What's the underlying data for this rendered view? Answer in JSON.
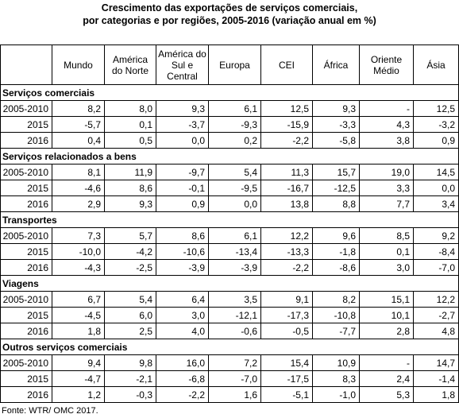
{
  "title": [
    "Crescimento das exportações de serviços comerciais,",
    "por categorias e por regiões, 2005-2016 (variação anual em %)"
  ],
  "table": {
    "columns": [
      "Mundo",
      "América do Norte",
      "América do Sul e Central",
      "Europa",
      "CEI",
      "África",
      "Oriente Médio",
      "Ásia"
    ],
    "sections": [
      {
        "name": "Serviços comerciais",
        "rows": [
          {
            "label": "2005-2010",
            "values": [
              "8,2",
              "8,0",
              "9,3",
              "6,1",
              "12,5",
              "9,3",
              "-",
              "12,5"
            ]
          },
          {
            "label": "2015",
            "values": [
              "-5,7",
              "0,1",
              "-3,7",
              "-9,3",
              "-15,9",
              "-3,3",
              "4,3",
              "-3,2"
            ]
          },
          {
            "label": "2016",
            "values": [
              "0,4",
              "0,5",
              "0,0",
              "0,2",
              "-2,2",
              "-5,8",
              "3,8",
              "0,9"
            ]
          }
        ]
      },
      {
        "name": "Serviços relacionados a bens",
        "rows": [
          {
            "label": "2005-2010",
            "values": [
              "8,1",
              "11,9",
              "-9,7",
              "5,4",
              "11,3",
              "15,7",
              "19,0",
              "14,5"
            ]
          },
          {
            "label": "2015",
            "values": [
              "-4,6",
              "8,6",
              "-0,1",
              "-9,5",
              "-16,7",
              "-12,5",
              "3,3",
              "0,0"
            ]
          },
          {
            "label": "2016",
            "values": [
              "2,9",
              "9,3",
              "0,9",
              "0,0",
              "13,8",
              "8,8",
              "7,7",
              "3,4"
            ]
          }
        ]
      },
      {
        "name": "Transportes",
        "rows": [
          {
            "label": "2005-2010",
            "values": [
              "7,3",
              "5,7",
              "8,6",
              "6,1",
              "12,2",
              "9,6",
              "8,5",
              "9,2"
            ]
          },
          {
            "label": "2015",
            "values": [
              "-10,0",
              "-4,2",
              "-10,6",
              "-13,4",
              "-13,3",
              "-1,8",
              "0,1",
              "-8,4"
            ]
          },
          {
            "label": "2016",
            "values": [
              "-4,3",
              "-2,5",
              "-3,9",
              "-3,9",
              "-2,2",
              "-8,6",
              "3,0",
              "-7,0"
            ]
          }
        ]
      },
      {
        "name": "Viagens",
        "rows": [
          {
            "label": "2005-2010",
            "values": [
              "6,7",
              "5,4",
              "6,4",
              "3,5",
              "9,1",
              "8,2",
              "15,1",
              "12,2"
            ]
          },
          {
            "label": "2015",
            "values": [
              "-4,5",
              "6,0",
              "3,0",
              "-12,1",
              "-17,3",
              "-10,8",
              "10,1",
              "-2,7"
            ]
          },
          {
            "label": "2016",
            "values": [
              "1,8",
              "2,5",
              "4,0",
              "-0,6",
              "-0,5",
              "-7,7",
              "2,8",
              "4,8"
            ]
          }
        ]
      },
      {
        "name": "Outros serviços comerciais",
        "rows": [
          {
            "label": "2005-2010",
            "values": [
              "9,4",
              "9,8",
              "16,0",
              "7,2",
              "15,4",
              "10,9",
              "-",
              "14,7"
            ]
          },
          {
            "label": "2015",
            "values": [
              "-4,7",
              "-2,1",
              "-6,8",
              "-7,0",
              "-17,5",
              "8,3",
              "2,4",
              "-1,4"
            ]
          },
          {
            "label": "2016",
            "values": [
              "1,2",
              "-0,3",
              "-2,2",
              "1,6",
              "-5,1",
              "-1,0",
              "5,3",
              "1,8"
            ]
          }
        ]
      }
    ]
  },
  "source": "Fonte: WTR/ OMC 2017."
}
